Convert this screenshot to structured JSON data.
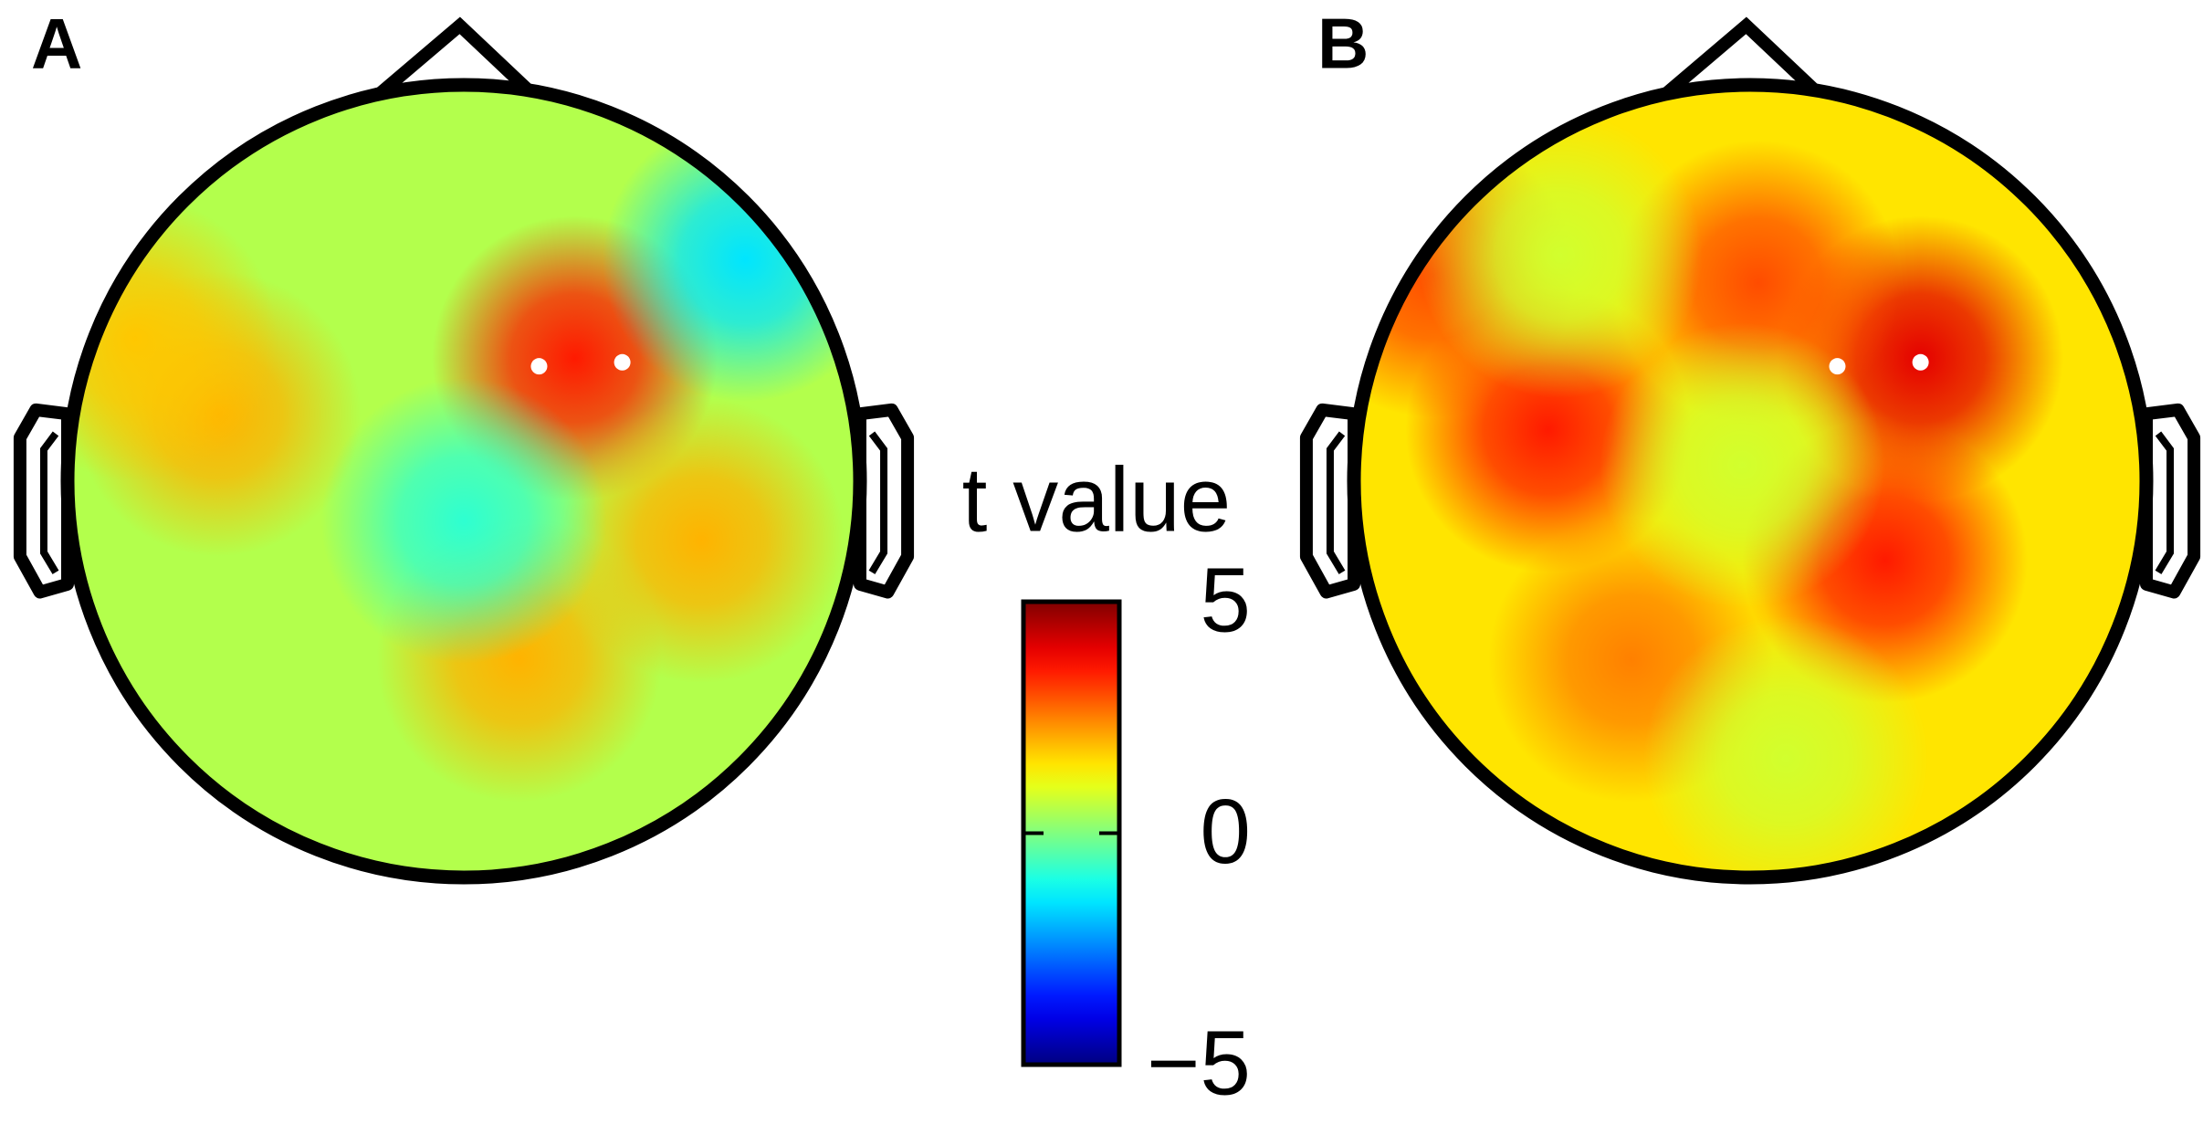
{
  "chart_data": {
    "type": "topomap",
    "maps": [
      {
        "label": "A",
        "baseline": 0.5,
        "x": [
          0.28,
          -0.62,
          -0.83,
          0.14,
          0.6,
          0.71,
          0.0
        ],
        "y": [
          0.31,
          0.17,
          0.36,
          -0.45,
          -0.15,
          0.56,
          -0.1
        ],
        "values": [
          3.5,
          2,
          1.8,
          2,
          2,
          -1.5,
          -0.8
        ]
      },
      {
        "label": "B",
        "baseline": 1.5,
        "x": [
          0.43,
          -0.51,
          -0.8,
          0.02,
          0.34,
          -0.3,
          -0.02,
          0.09,
          -0.48
        ],
        "y": [
          0.31,
          0.13,
          0.52,
          0.5,
          -0.2,
          -0.45,
          0.04,
          -0.7,
          0.57
        ],
        "values": [
          4,
          3.5,
          3,
          3,
          3.5,
          2.5,
          0.8,
          0.8,
          0.8
        ]
      }
    ],
    "colorbar": {
      "title": "t value",
      "colormap": "jet",
      "ylim": [
        -5,
        5
      ],
      "yticks": [
        5,
        0,
        {
          "value": -5,
          "label": "−5"
        }
      ]
    }
  }
}
